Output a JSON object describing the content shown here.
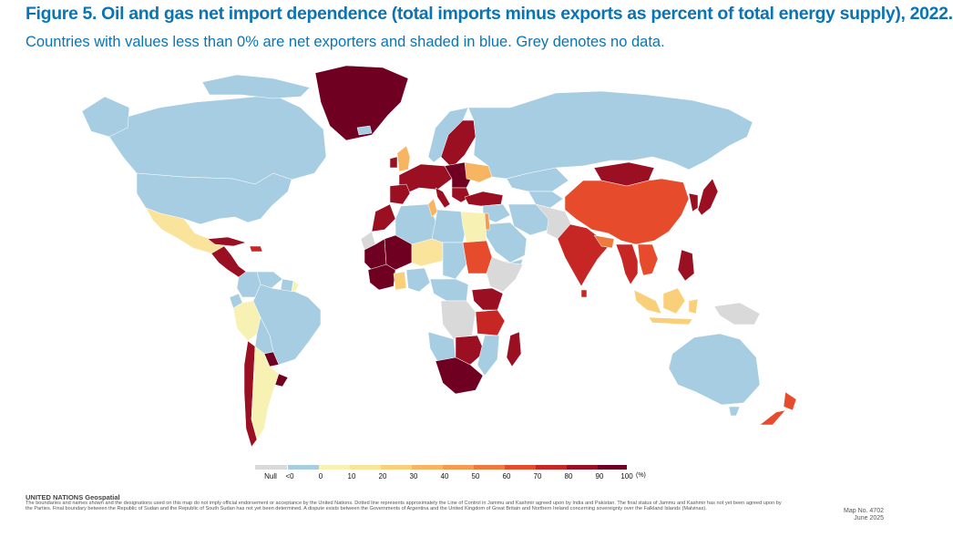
{
  "title": "Figure 5. Oil and gas net import dependence (total imports minus exports as percent of total energy supply), 2022.",
  "subtitle": "Countries with values less than 0% are net exporters and shaded in blue. Grey denotes no data.",
  "colors": {
    "null": "#d9d9d9",
    "exporter": "#a6cde2",
    "c0_10": "#f7f2b3",
    "c10_20": "#fae39a",
    "c20_30": "#f9cf7a",
    "c30_40": "#f7b461",
    "c40_50": "#f59a4e",
    "c50_60": "#ef7a3e",
    "c60_70": "#e64c2c",
    "c70_80": "#c62624",
    "c80_90": "#9a0f22",
    "c90_100": "#6f0022"
  },
  "legend": {
    "null_label": "Null",
    "labels": [
      "<0",
      "0",
      "10",
      "20",
      "30",
      "40",
      "50",
      "60",
      "70",
      "80",
      "90",
      "100"
    ],
    "unit": "(%)"
  },
  "footer": {
    "org": "UNITED NATIONS Geospatial",
    "disclaimer": "The boundaries and names shown and the designations used on this map do not imply official endorsement or acceptance by the United Nations. Dotted line represents approximately the Line of Control in Jammu and Kashmir agreed upon by India and Pakistan. The final status of Jammu and Kashmir has not yet been agreed upon by the Parties. Final boundary between the Republic of Sudan and the Republic of South Sudan has not yet been determined. A dispute exists between the Governments of Argentina and the United Kingdom of Great Britain and Northern Ireland concerning sovereignty over the Falkland Islands (Malvinas).",
    "map_no": "Map No. 4702",
    "date": "June 2025"
  }
}
